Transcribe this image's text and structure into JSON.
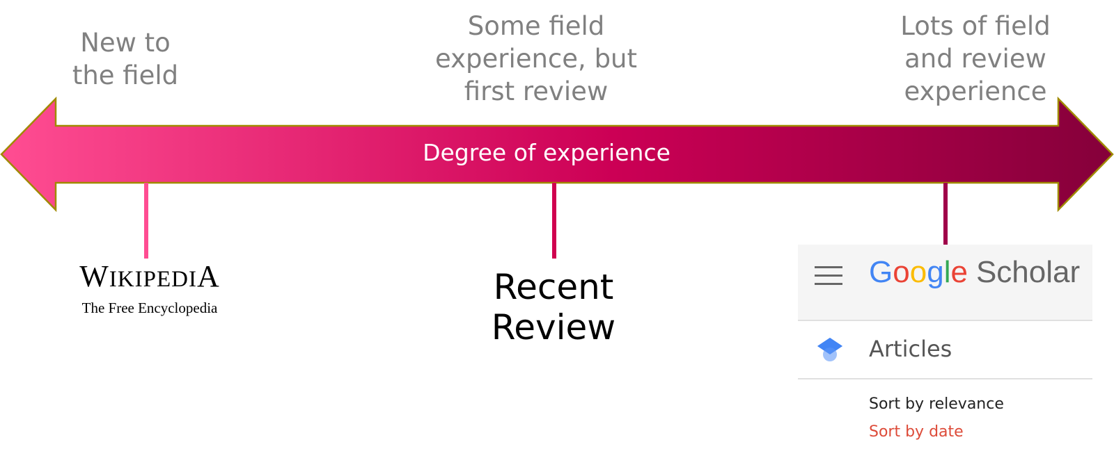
{
  "stages": [
    {
      "label": "New to\nthe field",
      "color": "#ff4d92"
    },
    {
      "label": "Some field\nexperience, but\nfirst review",
      "color": "#d0004f"
    },
    {
      "label": "Lots of field\nand review\nexperience",
      "color": "#a0004a"
    }
  ],
  "arrow": {
    "label": "Degree of experience",
    "gradient_start": "#ff4d92",
    "gradient_mid": "#cc0055",
    "gradient_end": "#85003a",
    "outline": "#a08a00"
  },
  "wikipedia": {
    "title": "Wikipedia",
    "tagline": "The Free Encyclopedia"
  },
  "recent_review": {
    "label": "Recent\nReview"
  },
  "google_scholar": {
    "logo_google": "Google",
    "logo_scholar": "Scholar",
    "menu_icon": "hamburger-menu-icon",
    "articles_icon": "graduation-cap-icon",
    "articles_label": "Articles",
    "sort_relevance": "Sort by relevance",
    "sort_date": "Sort by date"
  }
}
